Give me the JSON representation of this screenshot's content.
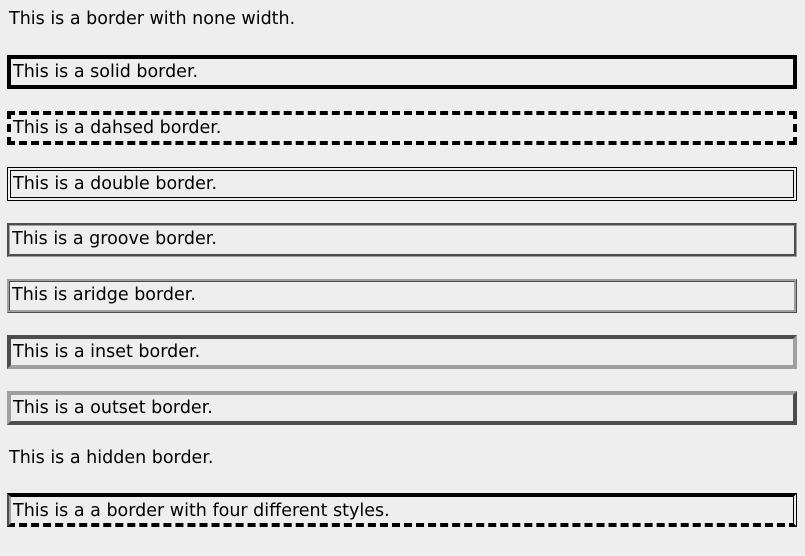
{
  "paragraphs": {
    "none": "This is a border with none width.",
    "solid": "This is a solid border.",
    "dashed": "This is a dahsed border.",
    "double": "This is a double border.",
    "groove": "This is a groove border.",
    "ridge": "This is aridge border.",
    "inset": "This is a inset border.",
    "outset": "This is a outset border.",
    "hidden": "This is a hidden border.",
    "mixed": "This is a a border with four different styles."
  },
  "colors": {
    "background": "#eeeeee",
    "border_dark": "#000000",
    "border_gray": "#a0a0a0"
  }
}
